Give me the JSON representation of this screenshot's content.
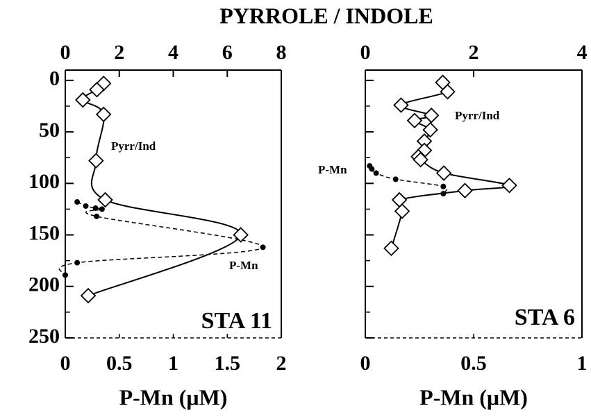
{
  "title": "PYRROLE / INDOLE",
  "chart_data": [
    {
      "type": "line",
      "station": "STA 11",
      "xlabel": "P-Mn (μM)",
      "xlim": [
        0,
        2
      ],
      "xticks": [
        0,
        0.5,
        1,
        1.5,
        2
      ],
      "x2lim": [
        0,
        8
      ],
      "x2ticks": [
        0,
        2,
        4,
        6,
        8
      ],
      "ylim": [
        -10,
        250
      ],
      "yticks": [
        0,
        50,
        100,
        150,
        200,
        250
      ],
      "show_ytick_labels": true,
      "y_inverted": true,
      "series": [
        {
          "name": "Pyrr/Ind",
          "axis": "x2",
          "marker": "diamond",
          "dashed": false,
          "values": [
            1.42,
            1.17,
            0.65,
            1.42,
            1.14,
            1.48,
            6.5,
            0.85
          ],
          "depth": [
            3,
            9,
            19,
            33,
            78,
            116,
            150,
            209
          ]
        },
        {
          "name": "P-Mn",
          "axis": "x",
          "marker": "dot",
          "dashed": true,
          "values": [
            0.11,
            0.19,
            0.28,
            0.34,
            0.29,
            1.83,
            0.11,
            0
          ],
          "depth": [
            118,
            122,
            124,
            125,
            132,
            162,
            177,
            189
          ]
        }
      ]
    },
    {
      "type": "line",
      "station": "STA 6",
      "xlabel": "P-Mn (μM)",
      "xlim": [
        0,
        1
      ],
      "xticks": [
        0,
        0.5,
        1
      ],
      "x2lim": [
        0,
        4
      ],
      "x2ticks": [
        0,
        2,
        4
      ],
      "ylim": [
        -10,
        250
      ],
      "yticks": [
        0,
        50,
        100,
        150,
        200,
        250
      ],
      "show_ytick_labels": false,
      "y_inverted": true,
      "series": [
        {
          "name": "Pyrr/Ind",
          "axis": "x2",
          "marker": "diamond",
          "dashed": false,
          "values": [
            1.43,
            1.52,
            0.66,
            1.22,
            0.91,
            1.2,
            1.09,
            1.09,
            0.98,
            1.02,
            1.45,
            2.66,
            1.84,
            0.63,
            0.68,
            0.48
          ],
          "depth": [
            2,
            11,
            24,
            34,
            39,
            48,
            59,
            68,
            74,
            77,
            90,
            102,
            107,
            116,
            127,
            163
          ]
        },
        {
          "name": "P-Mn",
          "axis": "x",
          "marker": "dot",
          "dashed": true,
          "values": [
            0.02,
            0.03,
            0.05,
            0.14,
            0.36,
            0.36
          ],
          "depth": [
            83,
            86,
            90,
            96,
            103,
            110
          ]
        }
      ]
    }
  ]
}
